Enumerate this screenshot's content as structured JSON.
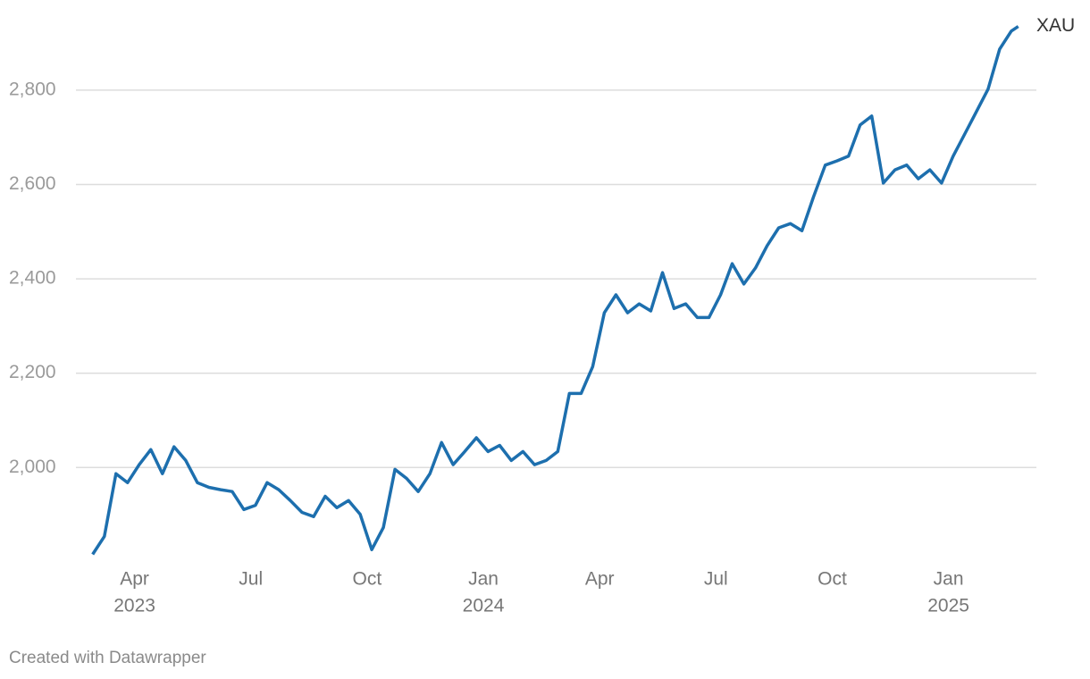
{
  "chart_data": {
    "type": "line",
    "x": [
      2023.16,
      2023.185,
      2023.21,
      2023.235,
      2023.26,
      2023.285,
      2023.31,
      2023.335,
      2023.36,
      2023.385,
      2023.41,
      2023.435,
      2023.46,
      2023.485,
      2023.51,
      2023.535,
      2023.56,
      2023.585,
      2023.61,
      2023.635,
      2023.66,
      2023.685,
      2023.71,
      2023.735,
      2023.76,
      2023.785,
      2023.81,
      2023.835,
      2023.86,
      2023.885,
      2023.91,
      2023.935,
      2023.96,
      2023.985,
      2024.01,
      2024.035,
      2024.06,
      2024.085,
      2024.11,
      2024.135,
      2024.16,
      2024.185,
      2024.21,
      2024.235,
      2024.26,
      2024.285,
      2024.31,
      2024.335,
      2024.36,
      2024.385,
      2024.41,
      2024.435,
      2024.46,
      2024.485,
      2024.51,
      2024.535,
      2024.56,
      2024.585,
      2024.61,
      2024.635,
      2024.66,
      2024.685,
      2024.71,
      2024.735,
      2024.76,
      2024.785,
      2024.81,
      2024.835,
      2024.86,
      2024.885,
      2024.91,
      2024.935,
      2024.96,
      2024.985,
      2025.01,
      2025.035,
      2025.06,
      2025.085,
      2025.11,
      2025.135,
      2025.15
    ],
    "series": [
      {
        "name": "XAU",
        "color": "#1d6fae",
        "values": [
          1816,
          1854,
          1987,
          1968,
          2006,
          2038,
          1987,
          2044,
          2015,
          1968,
          1958,
          1953,
          1949,
          1911,
          1920,
          1968,
          1953,
          1930,
          1905,
          1896,
          1939,
          1915,
          1930,
          1901,
          1826,
          1873,
          1996,
          1977,
          1949,
          1987,
          2053,
          2006,
          2034,
          2063,
          2034,
          2047,
          2015,
          2034,
          2006,
          2015,
          2034,
          2157,
          2157,
          2214,
          2328,
          2366,
          2328,
          2347,
          2332,
          2413,
          2337,
          2347,
          2318,
          2318,
          2366,
          2432,
          2389,
          2423,
          2470,
          2508,
          2517,
          2502,
          2574,
          2641,
          2650,
          2660,
          2726,
          2745,
          2603,
          2631,
          2641,
          2612,
          2631,
          2603,
          2660,
          2707,
          2754,
          2802,
          2887,
          2925,
          2935
        ]
      }
    ],
    "xlim": [
      2023.124,
      2025.189
    ],
    "xticks": [
      {
        "value": 2023.25,
        "label": "Apr",
        "sublabel": "2023"
      },
      {
        "value": 2023.5,
        "label": "Jul"
      },
      {
        "value": 2023.75,
        "label": "Oct"
      },
      {
        "value": 2024,
        "label": "Jan",
        "sublabel": "2024"
      },
      {
        "value": 2024.25,
        "label": "Apr"
      },
      {
        "value": 2024.5,
        "label": "Jul"
      },
      {
        "value": 2024.75,
        "label": "Oct"
      },
      {
        "value": 2025,
        "label": "Jan",
        "sublabel": "2025"
      }
    ],
    "ylim": [
      1815,
      2955
    ],
    "yticks": [
      {
        "value": 2000,
        "label": "2,000"
      },
      {
        "value": 2200,
        "label": "2,200"
      },
      {
        "value": 2400,
        "label": "2,400"
      },
      {
        "value": 2600,
        "label": "2,600"
      },
      {
        "value": 2800,
        "label": "2,800"
      }
    ],
    "grid": true,
    "footer": "Created with Datawrapper"
  }
}
